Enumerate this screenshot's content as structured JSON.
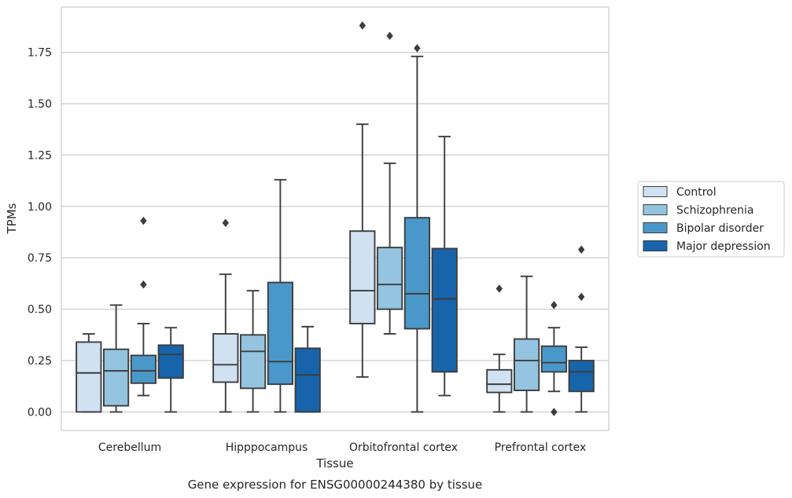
{
  "chart_data": {
    "type": "box",
    "title": "Gene expression for ENSG00000244380 by tissue",
    "xlabel": "Tissue",
    "ylabel": "TPMs",
    "ylim": [
      -0.09,
      1.97
    ],
    "yticks": [
      0.0,
      0.25,
      0.5,
      0.75,
      1.0,
      1.25,
      1.5,
      1.75
    ],
    "ytick_labels": [
      "0.00",
      "0.25",
      "0.50",
      "0.75",
      "1.00",
      "1.25",
      "1.50",
      "1.75"
    ],
    "grid": "horizontal",
    "legend_position": "right",
    "categories": [
      "Cerebellum",
      "Hipppocampus",
      "Orbitofrontal cortex",
      "Prefrontal cortex"
    ],
    "series": [
      {
        "name": "Control",
        "color": "#d0e1f2",
        "boxes": [
          {
            "whislo": 0.0,
            "q1": 0.0,
            "med": 0.19,
            "q3": 0.34,
            "whishi": 0.38,
            "fliers": []
          },
          {
            "whislo": 0.0,
            "q1": 0.145,
            "med": 0.23,
            "q3": 0.38,
            "whishi": 0.67,
            "fliers": [
              0.92
            ]
          },
          {
            "whislo": 0.17,
            "q1": 0.43,
            "med": 0.59,
            "q3": 0.88,
            "whishi": 1.4,
            "fliers": [
              1.88
            ]
          },
          {
            "whislo": 0.0,
            "q1": 0.095,
            "med": 0.135,
            "q3": 0.205,
            "whishi": 0.28,
            "fliers": [
              0.6
            ]
          }
        ]
      },
      {
        "name": "Schizophrenia",
        "color": "#94c4df",
        "boxes": [
          {
            "whislo": 0.0,
            "q1": 0.03,
            "med": 0.2,
            "q3": 0.305,
            "whishi": 0.52,
            "fliers": []
          },
          {
            "whislo": 0.0,
            "q1": 0.115,
            "med": 0.295,
            "q3": 0.375,
            "whishi": 0.59,
            "fliers": []
          },
          {
            "whislo": 0.38,
            "q1": 0.5,
            "med": 0.62,
            "q3": 0.8,
            "whishi": 1.21,
            "fliers": [
              1.83
            ]
          },
          {
            "whislo": 0.0,
            "q1": 0.105,
            "med": 0.25,
            "q3": 0.355,
            "whishi": 0.66,
            "fliers": []
          }
        ]
      },
      {
        "name": "Bipolar disorder",
        "color": "#4a98c9",
        "boxes": [
          {
            "whislo": 0.08,
            "q1": 0.14,
            "med": 0.2,
            "q3": 0.275,
            "whishi": 0.43,
            "fliers": [
              0.62,
              0.93
            ]
          },
          {
            "whislo": 0.0,
            "q1": 0.135,
            "med": 0.245,
            "q3": 0.63,
            "whishi": 1.13,
            "fliers": []
          },
          {
            "whislo": 0.0,
            "q1": 0.405,
            "med": 0.575,
            "q3": 0.945,
            "whishi": 1.73,
            "fliers": [
              1.77
            ]
          },
          {
            "whislo": 0.1,
            "q1": 0.195,
            "med": 0.24,
            "q3": 0.32,
            "whishi": 0.41,
            "fliers": [
              0.0,
              0.52
            ]
          }
        ]
      },
      {
        "name": "Major depression",
        "color": "#1764ab",
        "boxes": [
          {
            "whislo": 0.0,
            "q1": 0.165,
            "med": 0.28,
            "q3": 0.325,
            "whishi": 0.41,
            "fliers": []
          },
          {
            "whislo": 0.0,
            "q1": 0.0,
            "med": 0.18,
            "q3": 0.31,
            "whishi": 0.415,
            "fliers": []
          },
          {
            "whislo": 0.08,
            "q1": 0.195,
            "med": 0.55,
            "q3": 0.795,
            "whishi": 1.34,
            "fliers": []
          },
          {
            "whislo": 0.0,
            "q1": 0.1,
            "med": 0.195,
            "q3": 0.25,
            "whishi": 0.315,
            "fliers": [
              0.56,
              0.79
            ]
          }
        ]
      }
    ]
  }
}
